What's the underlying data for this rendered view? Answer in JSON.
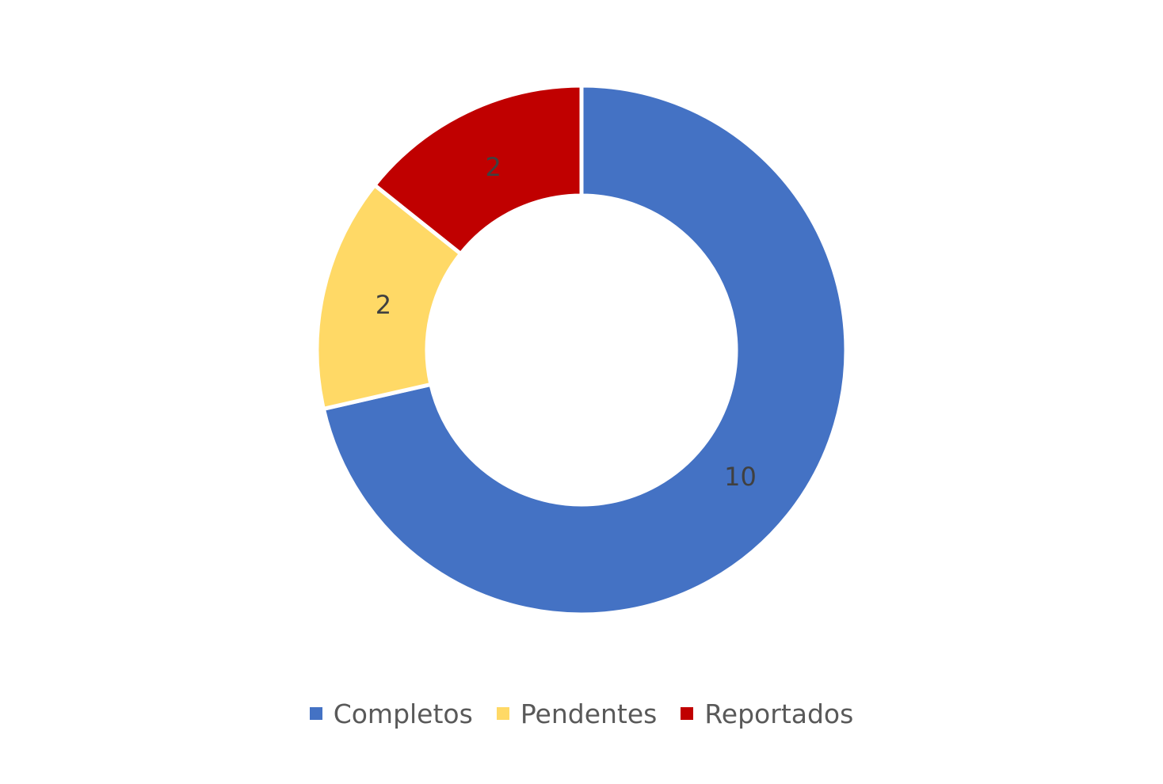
{
  "chart_data": {
    "type": "pie",
    "variant": "donut",
    "categories": [
      "Completos",
      "Pendentes",
      "Reportados"
    ],
    "values": [
      10,
      2,
      2
    ],
    "colors": [
      "#4472C4",
      "#FFD966",
      "#C00000"
    ],
    "data_labels": [
      "10",
      "2",
      "2"
    ],
    "legend_position": "bottom",
    "title": ""
  }
}
